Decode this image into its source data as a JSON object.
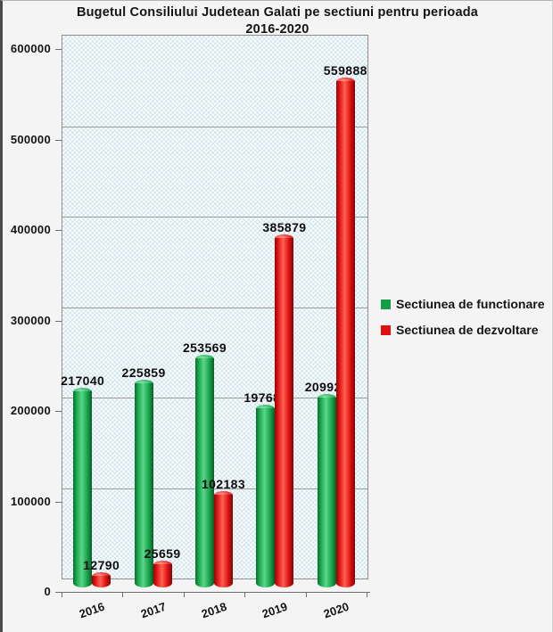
{
  "title": {
    "line1": "Bugetul Consiliului Judetean Galati pe sectiuni pentru perioada",
    "line2": "2016-2020"
  },
  "chart_data": {
    "type": "bar",
    "style": "3d-cylinder",
    "title": "Bugetul Consiliului Judetean Galati pe sectiuni pentru perioada 2016-2020",
    "categories": [
      "2016",
      "2017",
      "2018",
      "2019",
      "2020"
    ],
    "series": [
      {
        "name": "Sectiunea de functionare",
        "color": "#149E47",
        "values": [
          217040,
          225859,
          253569,
          197681,
          209924
        ]
      },
      {
        "name": "Sectiunea de dezvoltare",
        "color": "#E01010",
        "values": [
          12790,
          25659,
          102183,
          385879,
          559888
        ]
      }
    ],
    "ylim": [
      0,
      600000
    ],
    "ytick_step": 100000,
    "ytick_labels": [
      "0",
      "100000",
      "200000",
      "300000",
      "400000",
      "500000",
      "600000"
    ],
    "grid": true,
    "data_labels": true,
    "legend_position": "right"
  },
  "colors": {
    "green_main": "#17A24A",
    "red_main": "#DD1010",
    "plot_pattern": "#D3E6EF",
    "gridline": "#9B9B9B",
    "text": "#141414"
  }
}
